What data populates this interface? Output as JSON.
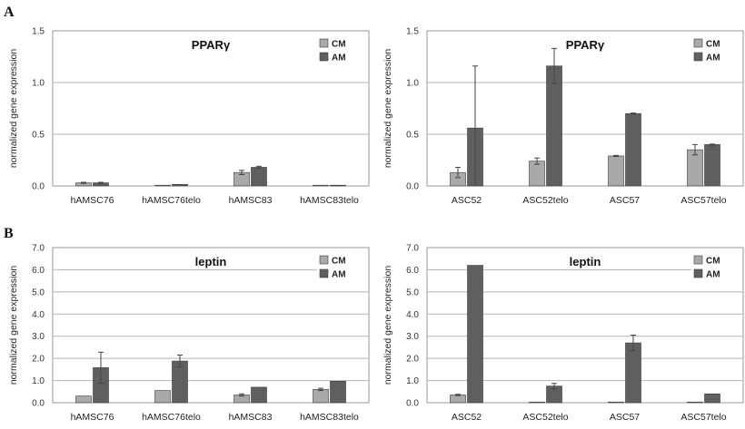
{
  "panel_labels": [
    "A",
    "B"
  ],
  "colors": {
    "CM": "#a9a9a9",
    "AM": "#5f5f5f",
    "grid": "#b5b5b5",
    "error": "#444444"
  },
  "chart_data": [
    {
      "panel": "A",
      "type": "bar",
      "title": "PPARγ",
      "ylabel": "normalized gene expression",
      "xlabel": "",
      "ylim": [
        0,
        1.5
      ],
      "yticks": [
        "0.0",
        "0.5",
        "1.0",
        "1.5"
      ],
      "grid": true,
      "legend": "top-right",
      "categories": [
        "hAMSC76",
        "hAMSC76telo",
        "hAMSC83",
        "hAMSC83telo"
      ],
      "series": [
        {
          "name": "CM",
          "values": [
            0.03,
            0.005,
            0.13,
            0.005
          ],
          "errors": [
            0.005,
            0.002,
            0.02,
            0.002
          ]
        },
        {
          "name": "AM",
          "values": [
            0.03,
            0.015,
            0.18,
            0.005
          ],
          "errors": [
            0.005,
            0.004,
            0.01,
            0.002
          ]
        }
      ]
    },
    {
      "panel": "",
      "type": "bar",
      "title": "PPARγ",
      "ylabel": "normalized gene expression",
      "xlabel": "",
      "ylim": [
        0,
        1.5
      ],
      "yticks": [
        "0.0",
        "0.5",
        "1.0",
        "1.5"
      ],
      "grid": true,
      "legend": "top-right",
      "categories": [
        "ASC52",
        "ASC52telo",
        "ASC57",
        "ASC57telo"
      ],
      "series": [
        {
          "name": "CM",
          "values": [
            0.13,
            0.24,
            0.29,
            0.35
          ],
          "errors": [
            0.05,
            0.03,
            0.005,
            0.05
          ]
        },
        {
          "name": "AM",
          "values": [
            0.56,
            1.16,
            0.7,
            0.4
          ],
          "errors": [
            0.6,
            0.17,
            0.005,
            0.005
          ]
        }
      ]
    },
    {
      "panel": "B",
      "type": "bar",
      "title": "leptin",
      "ylabel": "normalized gene expression",
      "xlabel": "",
      "ylim": [
        0,
        7
      ],
      "yticks": [
        "0.0",
        "1.0",
        "2.0",
        "3.0",
        "4.0",
        "5.0",
        "6.0",
        "7.0"
      ],
      "grid": true,
      "legend": "top-right",
      "categories": [
        "hAMSC76",
        "hAMSC76telo",
        "hAMSC83",
        "hAMSC83telo"
      ],
      "series": [
        {
          "name": "CM",
          "values": [
            0.3,
            0.55,
            0.35,
            0.6
          ],
          "errors": [
            0.02,
            0.02,
            0.05,
            0.05
          ]
        },
        {
          "name": "AM",
          "values": [
            1.58,
            1.88,
            0.7,
            0.97
          ],
          "errors": [
            0.7,
            0.27,
            0.02,
            0.02
          ]
        }
      ]
    },
    {
      "panel": "",
      "type": "bar",
      "title": "leptin",
      "ylabel": "normalized gene expression",
      "xlabel": "",
      "ylim": [
        0,
        7
      ],
      "yticks": [
        "0.0",
        "1.0",
        "2.0",
        "3.0",
        "4.0",
        "5.0",
        "6.0",
        "7.0"
      ],
      "grid": true,
      "legend": "top-right",
      "categories": [
        "ASC52",
        "ASC52telo",
        "ASC57",
        "ASC57telo"
      ],
      "series": [
        {
          "name": "CM",
          "values": [
            0.35,
            0.01,
            0.02,
            0.01
          ],
          "errors": [
            0.03,
            0.0,
            0.0,
            0.0
          ]
        },
        {
          "name": "AM",
          "values": [
            6.2,
            0.75,
            2.7,
            0.4
          ],
          "errors": [
            0.0,
            0.12,
            0.35,
            0.02
          ]
        }
      ]
    }
  ]
}
